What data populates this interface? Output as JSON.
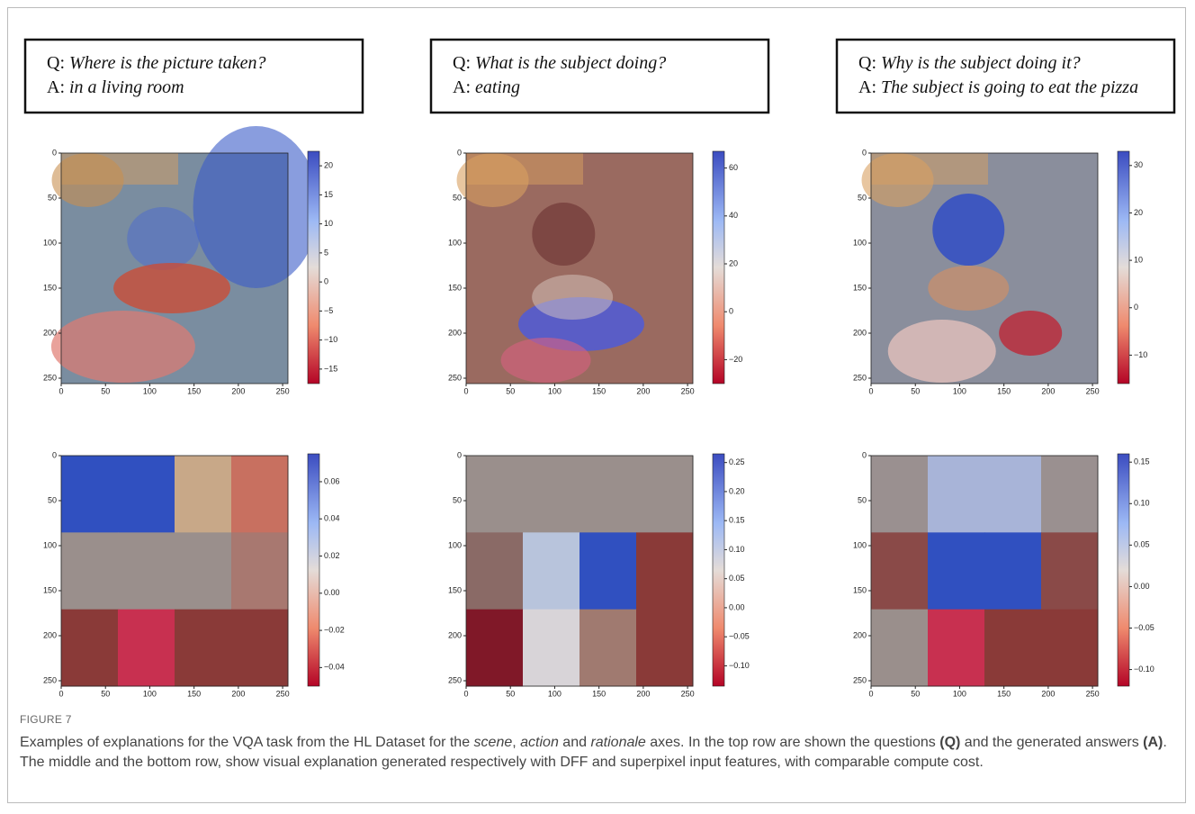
{
  "panels": [
    {
      "question_label": "Q:",
      "question": "Where is the picture taken?",
      "answer_label": "A:",
      "answer": "in a living room"
    },
    {
      "question_label": "Q:",
      "question": "What is the subject doing?",
      "answer_label": "A:",
      "answer": "eating"
    },
    {
      "question_label": "Q:",
      "question": "Why is the subject doing it?",
      "answer_label": "A:",
      "answer": "The subject is going to eat the pizza"
    }
  ],
  "plots": [
    {
      "xlim": [
        0,
        256
      ],
      "ylim": [
        0,
        256
      ],
      "xticks": [
        0,
        50,
        100,
        150,
        200,
        250
      ],
      "yticks": [
        0,
        50,
        100,
        150,
        200,
        250
      ],
      "clim": [
        -17.5,
        22.5
      ],
      "cticks": [
        20,
        15,
        10,
        5,
        0,
        {
          "value": -5,
          "label": "−5"
        },
        {
          "value": -10,
          "label": "−10"
        },
        {
          "value": -15,
          "label": "−15"
        }
      ]
    },
    {
      "xlim": [
        0,
        256
      ],
      "ylim": [
        0,
        256
      ],
      "xticks": [
        0,
        50,
        100,
        150,
        200,
        250
      ],
      "yticks": [
        0,
        50,
        100,
        150,
        200,
        250
      ],
      "clim": [
        -30,
        67
      ],
      "cticks": [
        60,
        40,
        20,
        0,
        {
          "value": -20,
          "label": "−20"
        }
      ]
    },
    {
      "xlim": [
        0,
        256
      ],
      "ylim": [
        0,
        256
      ],
      "xticks": [
        0,
        50,
        100,
        150,
        200,
        250
      ],
      "yticks": [
        0,
        50,
        100,
        150,
        200,
        250
      ],
      "clim": [
        -16,
        33
      ],
      "cticks": [
        30,
        20,
        10,
        0,
        {
          "value": -10,
          "label": "−10"
        }
      ]
    },
    {
      "xlim": [
        0,
        256
      ],
      "ylim": [
        0,
        256
      ],
      "xticks": [
        0,
        50,
        100,
        150,
        200,
        250
      ],
      "yticks": [
        0,
        50,
        100,
        150,
        200,
        250
      ],
      "clim": [
        -0.05,
        0.075
      ],
      "cticks": [
        0.06,
        0.04,
        0.02,
        {
          "value": 0,
          "label": "0.00"
        },
        {
          "value": -0.02,
          "label": "−0.02"
        },
        {
          "value": -0.04,
          "label": "−0.04"
        }
      ]
    },
    {
      "xlim": [
        0,
        256
      ],
      "ylim": [
        0,
        256
      ],
      "xticks": [
        0,
        50,
        100,
        150,
        200,
        250
      ],
      "yticks": [
        0,
        50,
        100,
        150,
        200,
        250
      ],
      "clim": [
        -0.135,
        0.265
      ],
      "cticks": [
        0.25,
        {
          "value": 0.2,
          "label": "0.20"
        },
        0.15,
        {
          "value": 0.1,
          "label": "0.10"
        },
        0.05,
        {
          "value": 0,
          "label": "0.00"
        },
        {
          "value": -0.05,
          "label": "−0.05"
        },
        {
          "value": -0.1,
          "label": "−0.10"
        }
      ]
    },
    {
      "xlim": [
        0,
        256
      ],
      "ylim": [
        0,
        256
      ],
      "xticks": [
        0,
        50,
        100,
        150,
        200,
        250
      ],
      "yticks": [
        0,
        50,
        100,
        150,
        200,
        250
      ],
      "clim": [
        -0.12,
        0.16
      ],
      "cticks": [
        0.15,
        {
          "value": 0.1,
          "label": "0.10"
        },
        0.05,
        {
          "value": 0,
          "label": "0.00"
        },
        {
          "value": -0.05,
          "label": "−0.05"
        },
        {
          "value": -0.1,
          "label": "−0.10"
        }
      ]
    }
  ],
  "caption": {
    "label": "FIGURE 7",
    "parts": [
      "Examples of explanations for the VQA task from the HL Dataset for the ",
      "scene",
      ", ",
      "action",
      " and ",
      "rationale",
      " axes. In the top row are shown the questions ",
      "(Q)",
      " and the generated answers ",
      "(A)",
      ". The middle and the bottom row, show visual explanation generated respectively with DFF and superpixel input features, with comparable compute cost."
    ]
  }
}
